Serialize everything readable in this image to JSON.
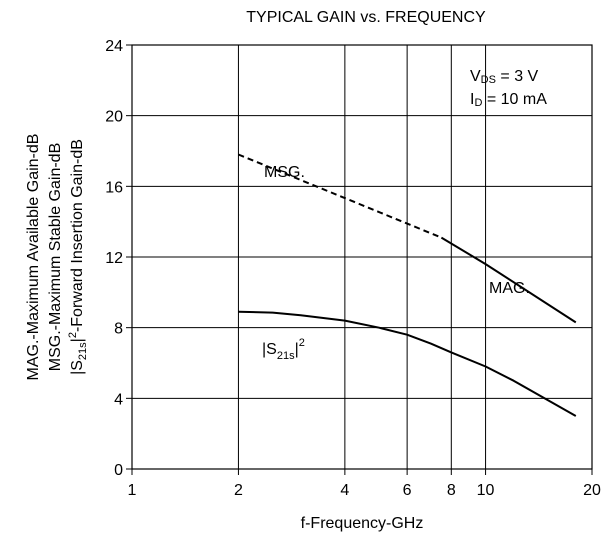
{
  "chart_data": {
    "type": "line",
    "title": "TYPICAL GAIN vs. FREQUENCY",
    "xlabel": "f-Frequency-GHz",
    "ylabel_lines": [
      "MAG.-Maximum Available Gain-dB",
      "MSG.-Maximum Stable Gain-dB",
      "|S21s|²-Forward Insertion Gain-dB"
    ],
    "ylabel_line3": {
      "pre": "|S",
      "sub": "21s",
      "mid": "|",
      "sup": "2",
      "post": "-Forward Insertion Gain-dB"
    },
    "x_scale": "log",
    "xlim": [
      1,
      20
    ],
    "ylim": [
      0,
      24
    ],
    "x_ticks": [
      1,
      2,
      4,
      6,
      8,
      10,
      20
    ],
    "x_tick_labels": [
      "1",
      "2",
      "4",
      "6",
      "8",
      "10",
      "20"
    ],
    "x_grid": [
      2,
      4,
      6,
      8,
      10
    ],
    "y_ticks": [
      0,
      4,
      8,
      12,
      16,
      20,
      24
    ],
    "y_tick_labels": [
      "0",
      "4",
      "8",
      "12",
      "16",
      "20",
      "24"
    ],
    "y_grid": [
      4,
      8,
      12,
      16,
      20
    ],
    "grid": true,
    "series": [
      {
        "name": "MSG.",
        "style": "dashed",
        "x": [
          2,
          7.5
        ],
        "y": [
          17.8,
          13.1
        ]
      },
      {
        "name": "MAG.",
        "style": "solid",
        "x": [
          7.5,
          10,
          18
        ],
        "y": [
          13.1,
          11.6,
          8.3
        ]
      },
      {
        "name": "|S21s|²",
        "style": "solid",
        "x": [
          2,
          2.5,
          3,
          4,
          5,
          6,
          7,
          8,
          10,
          12,
          15,
          18
        ],
        "y": [
          8.9,
          8.85,
          8.7,
          8.4,
          8.0,
          7.6,
          7.1,
          6.6,
          5.8,
          5.0,
          3.9,
          3.0
        ]
      }
    ],
    "annotations": {
      "msg_label": "MSG.",
      "mag_label": "MAG.",
      "s21_label": {
        "pre": "|S",
        "sub": "21s",
        "mid": "|",
        "sup": "2"
      },
      "conditions": [
        {
          "pre": "V",
          "sub": "DS",
          "post": " = 3 V"
        },
        {
          "pre": "I",
          "sub": "D",
          "post": " = 10 mA"
        }
      ]
    }
  }
}
